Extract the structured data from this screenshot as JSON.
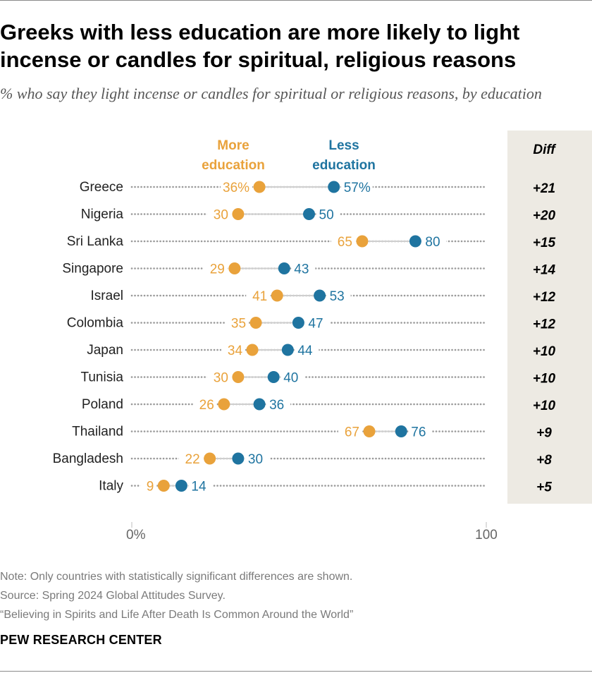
{
  "title": "Greeks with less education are more likely to light incense or candles for spiritual, religious reasons",
  "subtitle": "% who say they light incense or candles for spiritual or religious reasons, by education",
  "footer": {
    "note": "Note: Only countries with statistically significant differences are shown.",
    "source": "Source: Spring 2024 Global Attitudes Survey.",
    "report": "“Believing in Spirits and Life After Death Is Common Around the World”",
    "brand": "PEW RESEARCH CENTER"
  },
  "colors": {
    "more_education": "#E9A23B",
    "less_education": "#1F74A0",
    "diff_panel": "#EDEAE3",
    "dots": "#9a9a9a"
  },
  "chart_data": {
    "type": "dot",
    "xlim": [
      0,
      100
    ],
    "axis_labels": [
      "0%",
      "100"
    ],
    "series_labels": {
      "more_education": [
        "More",
        "education"
      ],
      "less_education": [
        "Less",
        "education"
      ]
    },
    "diff_header": "Diff",
    "rows": [
      {
        "country": "Greece",
        "more": 36,
        "less": 57,
        "more_label": "36%",
        "less_label": "57%",
        "diff": "+21"
      },
      {
        "country": "Nigeria",
        "more": 30,
        "less": 50,
        "more_label": "30",
        "less_label": "50",
        "diff": "+20"
      },
      {
        "country": "Sri Lanka",
        "more": 65,
        "less": 80,
        "more_label": "65",
        "less_label": "80",
        "diff": "+15"
      },
      {
        "country": "Singapore",
        "more": 29,
        "less": 43,
        "more_label": "29",
        "less_label": "43",
        "diff": "+14"
      },
      {
        "country": "Israel",
        "more": 41,
        "less": 53,
        "more_label": "41",
        "less_label": "53",
        "diff": "+12"
      },
      {
        "country": "Colombia",
        "more": 35,
        "less": 47,
        "more_label": "35",
        "less_label": "47",
        "diff": "+12"
      },
      {
        "country": "Japan",
        "more": 34,
        "less": 44,
        "more_label": "34",
        "less_label": "44",
        "diff": "+10"
      },
      {
        "country": "Tunisia",
        "more": 30,
        "less": 40,
        "more_label": "30",
        "less_label": "40",
        "diff": "+10"
      },
      {
        "country": "Poland",
        "more": 26,
        "less": 36,
        "more_label": "26",
        "less_label": "36",
        "diff": "+10"
      },
      {
        "country": "Thailand",
        "more": 67,
        "less": 76,
        "more_label": "67",
        "less_label": "76",
        "diff": "+9"
      },
      {
        "country": "Bangladesh",
        "more": 22,
        "less": 30,
        "more_label": "22",
        "less_label": "30",
        "diff": "+8"
      },
      {
        "country": "Italy",
        "more": 9,
        "less": 14,
        "more_label": "9",
        "less_label": "14",
        "diff": "+5"
      }
    ]
  }
}
